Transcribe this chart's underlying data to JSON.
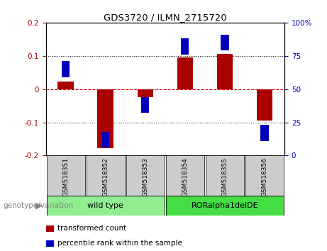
{
  "title": "GDS3720 / ILMN_2715720",
  "samples": [
    "GSM518351",
    "GSM518352",
    "GSM518353",
    "GSM518354",
    "GSM518355",
    "GSM518356"
  ],
  "red_bars": [
    0.022,
    -0.178,
    -0.024,
    0.095,
    0.105,
    -0.095
  ],
  "blue_pct": [
    65,
    12,
    38,
    82,
    85,
    17
  ],
  "ylim_left": [
    -0.2,
    0.2
  ],
  "ylim_right": [
    0,
    100
  ],
  "yticks_left": [
    -0.2,
    -0.1,
    0.0,
    0.1,
    0.2
  ],
  "yticks_right": [
    0,
    25,
    50,
    75,
    100
  ],
  "ytick_labels_left": [
    "-0.2",
    "-0.1",
    "0",
    "0.1",
    "0.2"
  ],
  "ytick_labels_right": [
    "0",
    "25",
    "50",
    "75",
    "100%"
  ],
  "groups": [
    {
      "label": "wild type",
      "indices": [
        0,
        1,
        2
      ],
      "color": "#90EE90"
    },
    {
      "label": "RORalpha1delDE",
      "indices": [
        3,
        4,
        5
      ],
      "color": "#44DD44"
    }
  ],
  "bar_color": "#AA0000",
  "blue_color": "#0000BB",
  "zero_line_color": "#CC0000",
  "grid_color": "#000000",
  "bg_color": "#FFFFFF",
  "plot_bg": "#FFFFFF",
  "label_bg": "#CCCCCC",
  "genotype_label": "genotype/variation",
  "legend_red": "transformed count",
  "legend_blue": "percentile rank within the sample"
}
